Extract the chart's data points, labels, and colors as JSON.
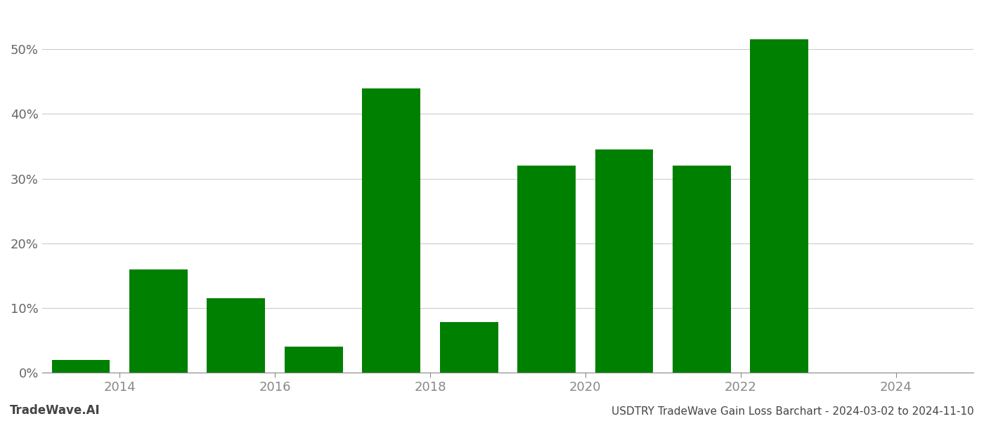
{
  "bar_centers": [
    2013.5,
    2014.5,
    2015.5,
    2016.5,
    2017.5,
    2018.5,
    2019.5,
    2020.5,
    2021.5,
    2022.5
  ],
  "values": [
    2.0,
    16.0,
    11.5,
    4.0,
    44.0,
    7.8,
    32.0,
    34.5,
    32.0,
    51.5
  ],
  "bar_color": "#008000",
  "background_color": "#ffffff",
  "grid_color": "#cccccc",
  "ylabel_color": "#666666",
  "xlabel_color": "#666666",
  "tick_color": "#888888",
  "ylim": [
    0,
    56
  ],
  "yticks": [
    0,
    10,
    20,
    30,
    40,
    50
  ],
  "xlim": [
    2013.0,
    2025.0
  ],
  "xtick_positions": [
    2014,
    2016,
    2018,
    2020,
    2022,
    2024
  ],
  "footer_left": "TradeWave.AI",
  "footer_right": "USDTRY TradeWave Gain Loss Barchart - 2024-03-02 to 2024-11-10",
  "footer_color": "#444444",
  "bar_width": 0.75
}
